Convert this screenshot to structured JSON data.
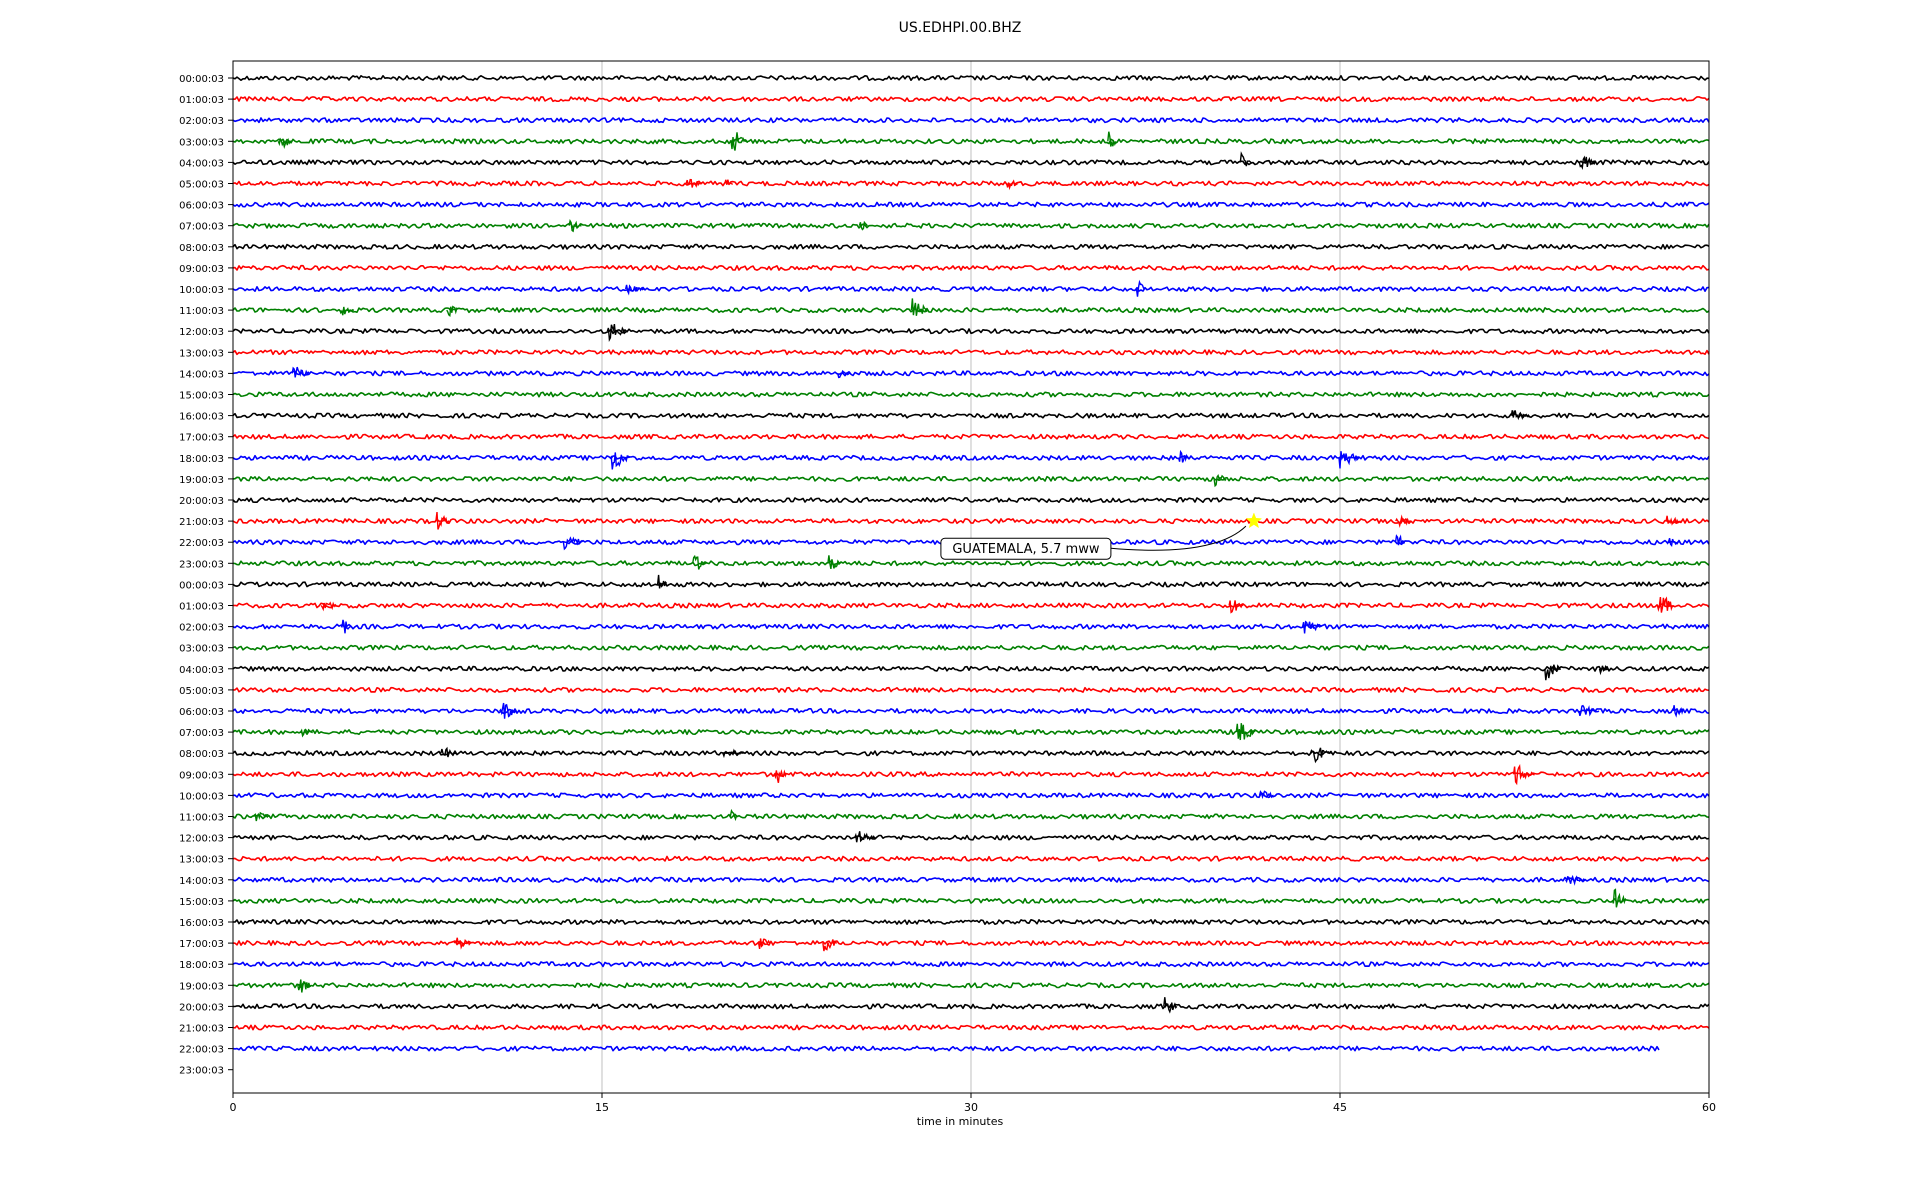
{
  "chart_data": {
    "type": "line",
    "title": "US.EDHPI.00.BHZ",
    "xlabel": "time in minutes",
    "xlim": [
      0,
      60
    ],
    "xticks": [
      0,
      15,
      30,
      45,
      60
    ],
    "grid": "vertical at x ticks",
    "row_labels": [
      "00:00:03",
      "01:00:03",
      "02:00:03",
      "03:00:03",
      "04:00:03",
      "05:00:03",
      "06:00:03",
      "07:00:03",
      "08:00:03",
      "09:00:03",
      "10:00:03",
      "11:00:03",
      "12:00:03",
      "13:00:03",
      "14:00:03",
      "15:00:03",
      "16:00:03",
      "17:00:03",
      "18:00:03",
      "19:00:03",
      "20:00:03",
      "21:00:03",
      "22:00:03",
      "23:00:03",
      "00:00:03",
      "01:00:03",
      "02:00:03",
      "03:00:03",
      "04:00:03",
      "05:00:03",
      "06:00:03",
      "07:00:03",
      "08:00:03",
      "09:00:03",
      "10:00:03",
      "11:00:03",
      "12:00:03",
      "13:00:03",
      "14:00:03",
      "15:00:03",
      "16:00:03",
      "17:00:03",
      "18:00:03",
      "19:00:03",
      "20:00:03",
      "21:00:03",
      "22:00:03",
      "23:00:03"
    ],
    "trace_colors": [
      "#000000",
      "#ff0000",
      "#0000ff",
      "#008000"
    ],
    "last_trace_end_minute": 58,
    "event": {
      "label": "GUATEMALA, 5.7 mww",
      "row": 21,
      "minute": 41.5,
      "marker": "star",
      "marker_color": "#ffff00"
    }
  }
}
